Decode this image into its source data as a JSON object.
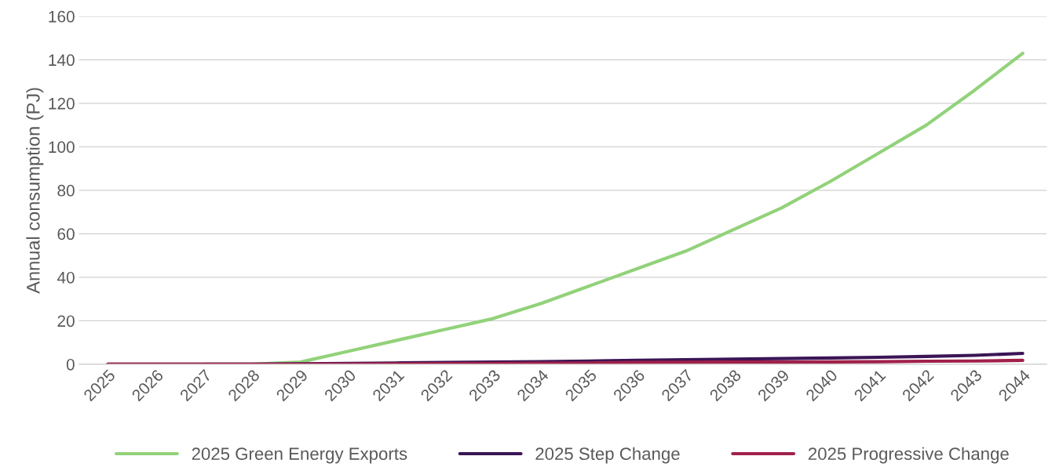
{
  "chart_data": {
    "type": "line",
    "ylabel": "Annual consumption (PJ)",
    "categories": [
      "2025",
      "2026",
      "2027",
      "2028",
      "2029",
      "2030",
      "2031",
      "2032",
      "2033",
      "2034",
      "2035",
      "2036",
      "2037",
      "2038",
      "2039",
      "2040",
      "2041",
      "2042",
      "2043",
      "2044"
    ],
    "series": [
      {
        "name": "2025 Green Energy Exports",
        "color": "#92d27a",
        "values": [
          null,
          null,
          0,
          0,
          1,
          6,
          11,
          16,
          21,
          28,
          36,
          44,
          52,
          62,
          72,
          84,
          97,
          110,
          126,
          143
        ]
      },
      {
        "name": "2025 Step Change",
        "color": "#3b1556",
        "values": [
          0,
          0,
          0,
          0,
          0.2,
          0.4,
          0.6,
          0.8,
          1.0,
          1.2,
          1.5,
          1.8,
          2.1,
          2.4,
          2.6,
          2.9,
          3.2,
          3.6,
          4.1,
          5.0
        ]
      },
      {
        "name": "2025 Progressive Change",
        "color": "#a0214a",
        "values": [
          0,
          0,
          0,
          0,
          0,
          0.1,
          0.2,
          0.3,
          0.4,
          0.5,
          0.6,
          0.8,
          0.9,
          1.0,
          1.0,
          1.1,
          1.2,
          1.4,
          1.5,
          1.8
        ]
      }
    ],
    "ylim": [
      0,
      160
    ],
    "yticks": [
      0,
      20,
      40,
      60,
      80,
      100,
      120,
      140,
      160
    ],
    "grid": "y",
    "legend": "bottom"
  }
}
